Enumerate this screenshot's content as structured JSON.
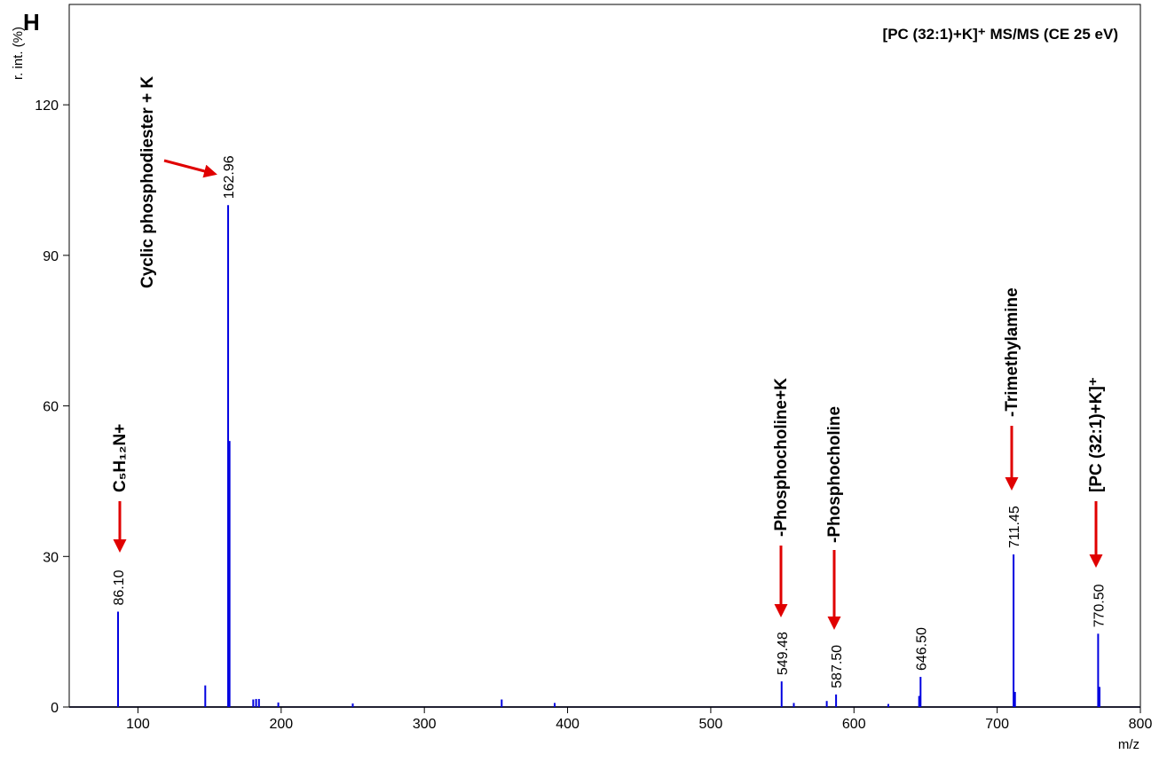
{
  "panel_label": "H",
  "chart_data": {
    "type": "spectrum",
    "title": "[PC (32:1)+K]⁺ MS/MS (CE 25 eV)",
    "x_label": "m/z",
    "y_label": "r. int. (%)",
    "xlim": [
      52,
      800
    ],
    "ylim": [
      0,
      140
    ],
    "xticks": [
      100,
      200,
      300,
      400,
      500,
      600,
      700,
      800
    ],
    "yticks": [
      0,
      30,
      60,
      90,
      120
    ],
    "series": [
      {
        "name": "spectrum",
        "color": "#0000e0",
        "x": [
          {
            "value": 86.1,
            "label": "86.10"
          },
          147,
          {
            "value": 162.96,
            "label": "162.96"
          },
          163.96,
          180.5,
          182.5,
          184.5,
          198,
          250,
          354,
          391,
          {
            "value": 549.48,
            "label": "549.48"
          },
          558,
          581,
          {
            "value": 587.5,
            "label": "587.50"
          },
          624,
          645.5,
          {
            "value": 646.5,
            "label": "646.50"
          },
          {
            "value": 711.45,
            "label": "711.45"
          },
          712.45,
          {
            "value": 770.5,
            "label": "770.50"
          },
          771.5
        ],
        "values": [
          19,
          4.3,
          100,
          53,
          1.5,
          1.6,
          1.6,
          0.9,
          0.7,
          1.5,
          0.8,
          5.1,
          0.8,
          1.2,
          2.5,
          0.6,
          2.2,
          6,
          30.4,
          3,
          14.6,
          4
        ]
      }
    ],
    "annotations": [
      "C₅H₁₂N+",
      "Cyclic phosphodiester + K",
      "-Phosphocholine+K",
      "-Phosphocholine",
      "-Trimethylamine",
      "[PC (32:1)+K]⁺"
    ]
  }
}
